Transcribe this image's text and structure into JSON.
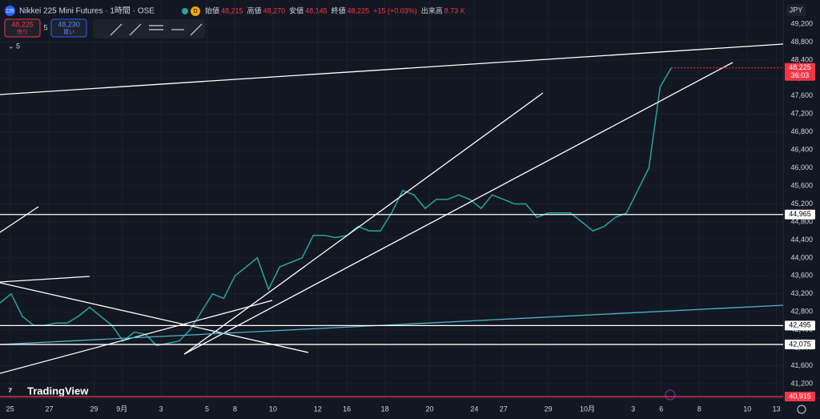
{
  "header": {
    "symbol_icon": "225",
    "symbol": "Nikkei 225 Mini Futures · 1時間 · OSE",
    "badge": "D",
    "ohlc": [
      {
        "label": "始値",
        "value": "48,215"
      },
      {
        "label": "高値",
        "value": "48,270"
      },
      {
        "label": "安値",
        "value": "48,145"
      },
      {
        "label": "終値",
        "value": "48,225"
      }
    ],
    "change": "+15 (+0.03%)",
    "volume_label": "出来高",
    "volume": "8.73 K"
  },
  "order": {
    "sell_price": "48,225",
    "sell_label": "売り",
    "qty": "5",
    "buy_price": "48,230",
    "buy_label": "買い"
  },
  "indicator_count": "5",
  "currency": "JPY",
  "brand": "TradingView",
  "chart_data": {
    "type": "line",
    "color": "#26a69a",
    "x": [
      0,
      1,
      2,
      3,
      4,
      5,
      6,
      7,
      8,
      9,
      10,
      11,
      12,
      13,
      14,
      15,
      16,
      17,
      18,
      19,
      20,
      21,
      22,
      23,
      24,
      25,
      26,
      27,
      28,
      29,
      30,
      31,
      32,
      33,
      34,
      35,
      36,
      37,
      38,
      39,
      40,
      41,
      42,
      43,
      44,
      45,
      46,
      47,
      48,
      49,
      50,
      51,
      52,
      53,
      54,
      55,
      56,
      57,
      58,
      59,
      60
    ],
    "values": [
      43000,
      43200,
      42700,
      42500,
      42500,
      42550,
      42550,
      42700,
      42900,
      42700,
      42500,
      42150,
      42350,
      42300,
      42050,
      42100,
      42150,
      42400,
      42800,
      43200,
      43100,
      43600,
      43800,
      44000,
      43300,
      43800,
      43900,
      44000,
      44500,
      44500,
      44450,
      44500,
      44700,
      44600,
      44600,
      45000,
      45500,
      45400,
      45100,
      45300,
      45300,
      45400,
      45300,
      45100,
      45400,
      45300,
      45200,
      45200,
      44900,
      45000,
      45000,
      45000,
      44800,
      44600,
      44700,
      44900,
      45000,
      45500,
      46000,
      47800,
      48225
    ],
    "xlim": [
      0,
      70
    ],
    "ylim": [
      40880,
      49735
    ],
    "xticks": [
      {
        "value": 0.9,
        "label": "25"
      },
      {
        "value": 4.4,
        "label": "27"
      },
      {
        "value": 8.4,
        "label": "29"
      },
      {
        "value": 10.9,
        "label": "9月"
      },
      {
        "value": 14.4,
        "label": "3"
      },
      {
        "value": 18.5,
        "label": "5"
      },
      {
        "value": 21,
        "label": "8"
      },
      {
        "value": 24.4,
        "label": "10"
      },
      {
        "value": 28.4,
        "label": "12"
      },
      {
        "value": 31,
        "label": "16"
      },
      {
        "value": 34.4,
        "label": "18"
      },
      {
        "value": 38.4,
        "label": "20"
      },
      {
        "value": 42.4,
        "label": "24"
      },
      {
        "value": 45,
        "label": "27"
      },
      {
        "value": 49,
        "label": "29"
      },
      {
        "value": 52.5,
        "label": "10月"
      },
      {
        "value": 56.6,
        "label": "3"
      },
      {
        "value": 59.1,
        "label": "6"
      },
      {
        "value": 62.5,
        "label": "8"
      },
      {
        "value": 66.8,
        "label": "10"
      },
      {
        "value": 69.4,
        "label": "13"
      }
    ],
    "yticks": [
      {
        "value": 41200,
        "label": "41,200"
      },
      {
        "value": 41600,
        "label": "41,600"
      },
      {
        "value": 42000,
        "label": "42,000"
      },
      {
        "value": 42400,
        "label": "42,400"
      },
      {
        "value": 42800,
        "label": "42,800"
      },
      {
        "value": 43200,
        "label": "43,200"
      },
      {
        "value": 43600,
        "label": "43,600"
      },
      {
        "value": 44000,
        "label": "44,000"
      },
      {
        "value": 44400,
        "label": "44,400"
      },
      {
        "value": 44800,
        "label": "44,800"
      },
      {
        "value": 45200,
        "label": "45,200"
      },
      {
        "value": 45600,
        "label": "45,600"
      },
      {
        "value": 46000,
        "label": "46,000"
      },
      {
        "value": 46400,
        "label": "46,400"
      },
      {
        "value": 46800,
        "label": "46,800"
      },
      {
        "value": 47200,
        "label": "47,200"
      },
      {
        "value": 47600,
        "label": "47,600"
      },
      {
        "value": 48000,
        "label": "48,000"
      },
      {
        "value": 48400,
        "label": "48,400"
      },
      {
        "value": 48800,
        "label": "48,800"
      },
      {
        "value": 49200,
        "label": "49,200"
      }
    ],
    "price_lines": [
      {
        "value": 44965,
        "label": "44,965",
        "color": "#ffffff"
      },
      {
        "value": 42495,
        "label": "42,495",
        "color": "#ffffff"
      },
      {
        "value": 42075,
        "label": "42,075",
        "color": "#ffffff"
      },
      {
        "value": 40915,
        "label": "40,915",
        "color": "#f23645"
      }
    ],
    "last_price": {
      "value": 48225,
      "label": "48,225",
      "countdown": "36:03",
      "color": "#f23645"
    }
  }
}
